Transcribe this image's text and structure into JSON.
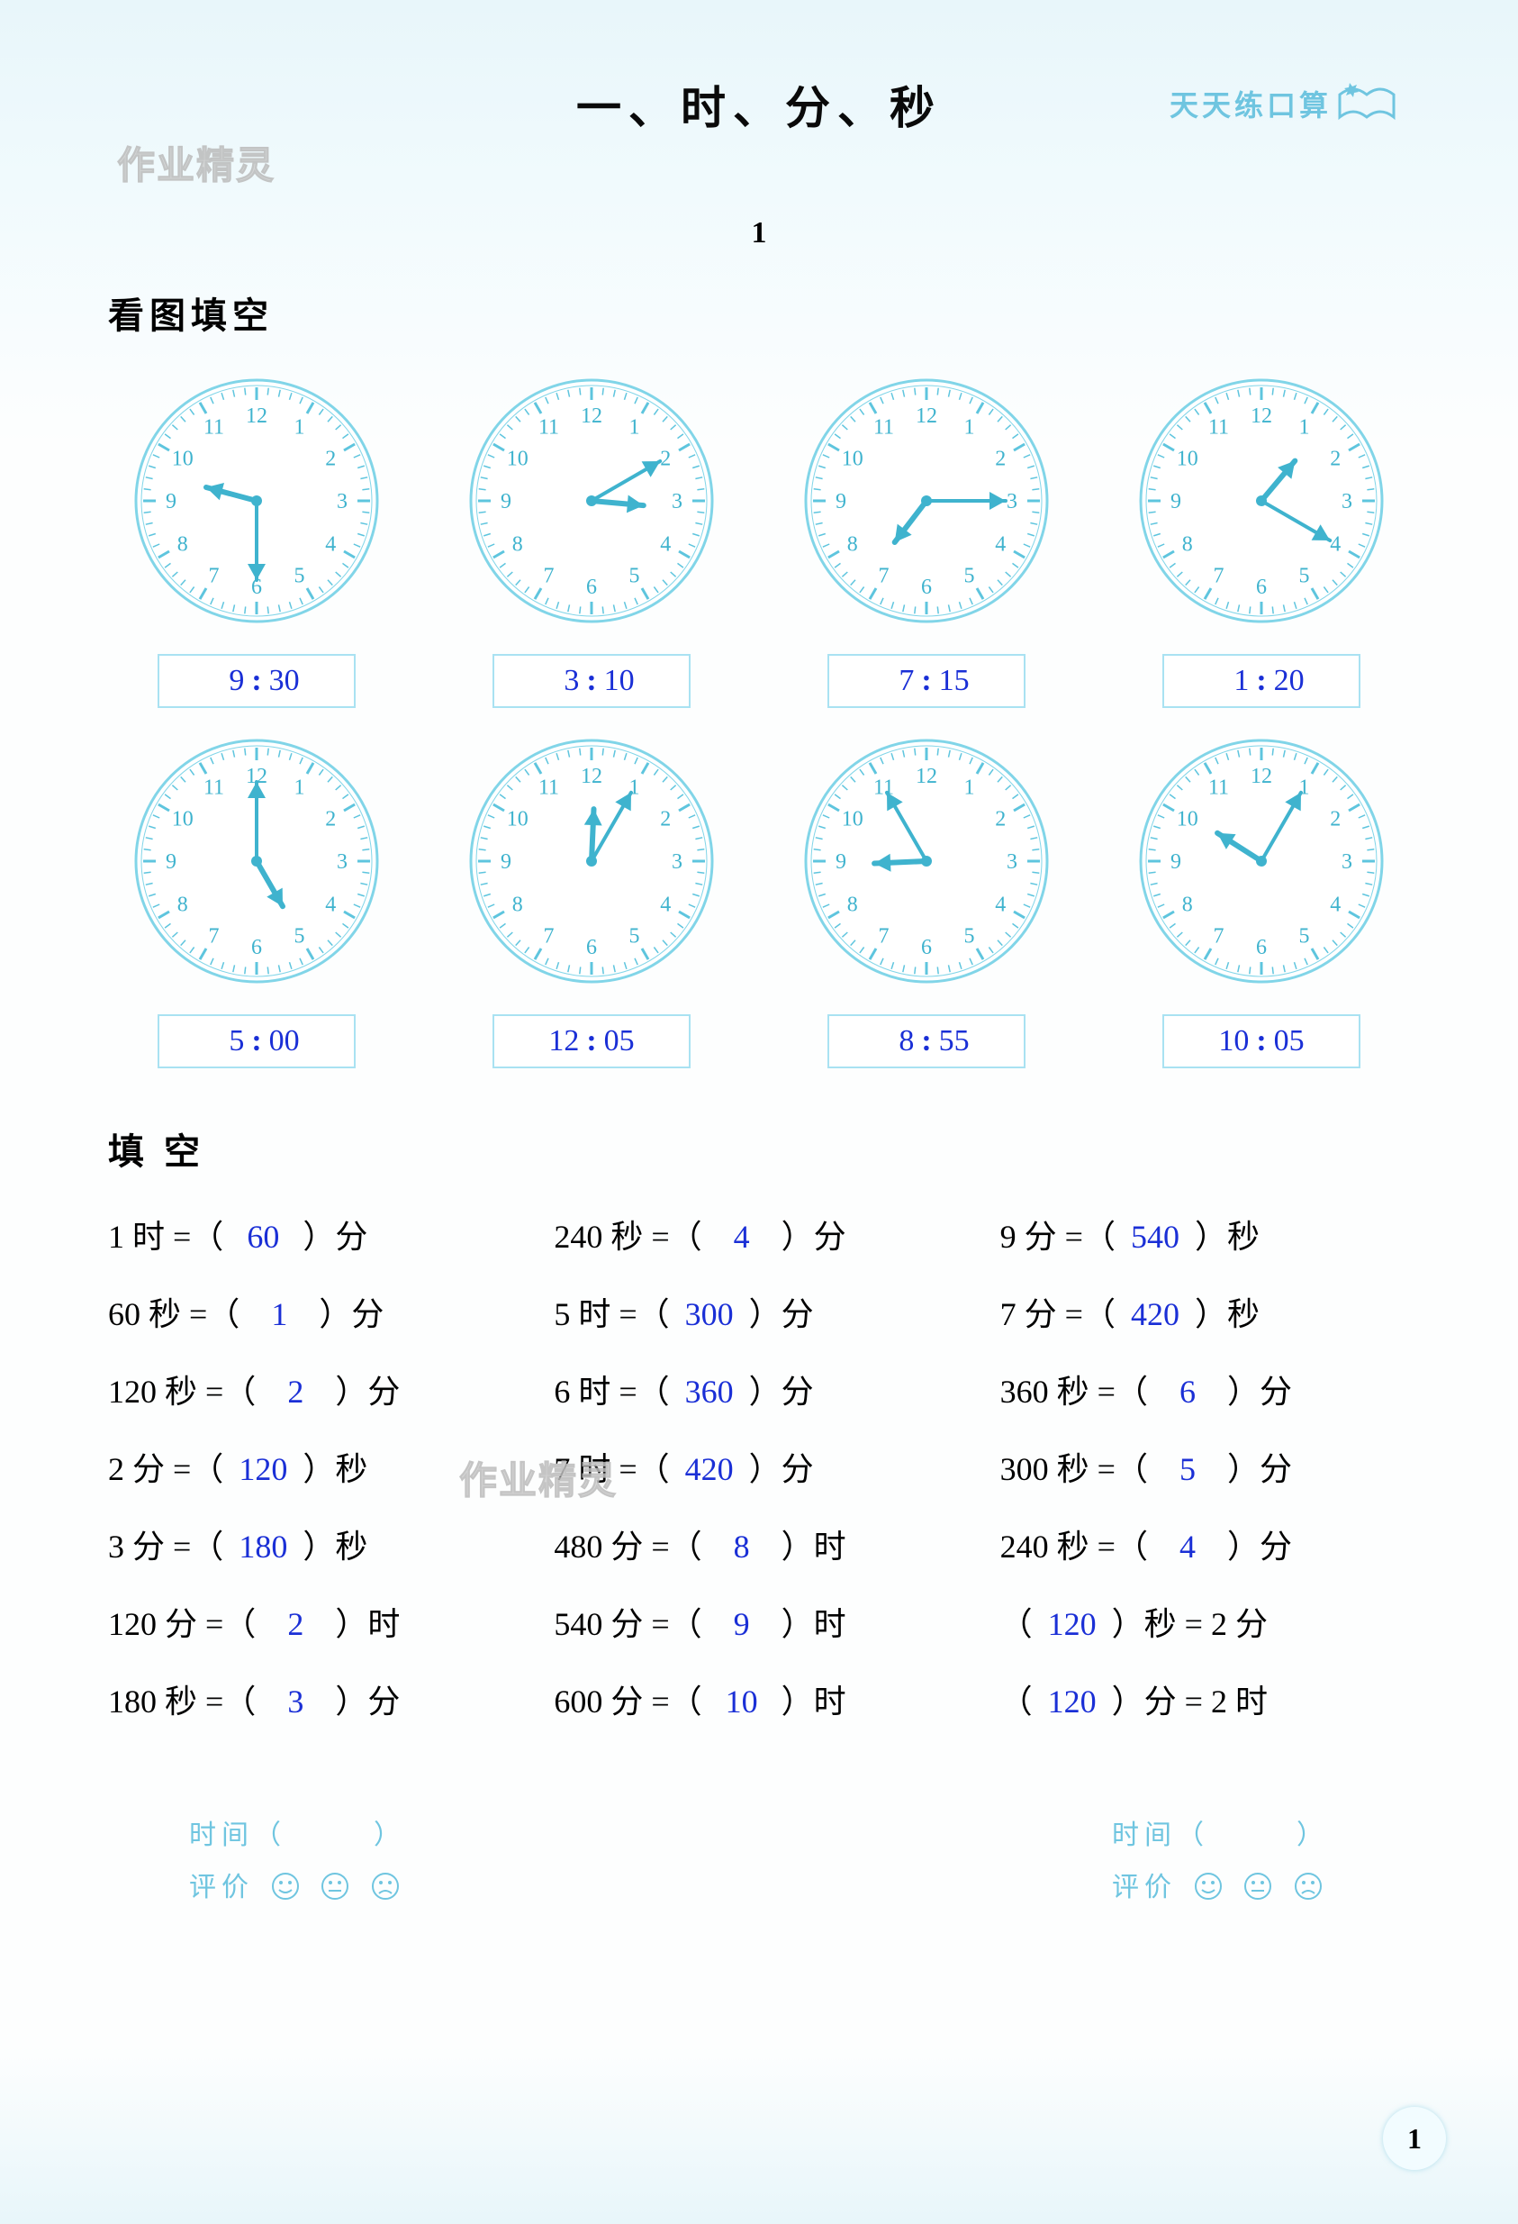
{
  "colors": {
    "clock_stroke": "#81d5e8",
    "clock_hand": "#3fb3ce",
    "clock_tick": "#5ec5de",
    "answer": "#1a2fd6",
    "brand": "#6fc5e0",
    "box_border": "#a9e2f2"
  },
  "header": {
    "chapter_title": "一、时、分、秒",
    "brand": "天天练口算"
  },
  "watermarks": {
    "top": "作业精灵",
    "mid": "作业精灵"
  },
  "section_number": "1",
  "section1_title": "看图填空",
  "section2_title": "填 空",
  "clocks": [
    {
      "hour": 9,
      "minute": 30,
      "display_h": "9",
      "display_m": "30"
    },
    {
      "hour": 3,
      "minute": 10,
      "display_h": "3",
      "display_m": "10"
    },
    {
      "hour": 7,
      "minute": 15,
      "display_h": "7",
      "display_m": "15"
    },
    {
      "hour": 1,
      "minute": 20,
      "display_h": "1",
      "display_m": "20"
    },
    {
      "hour": 5,
      "minute": 0,
      "display_h": "5",
      "display_m": "00"
    },
    {
      "hour": 12,
      "minute": 5,
      "display_h": "12",
      "display_m": "05"
    },
    {
      "hour": 8,
      "minute": 55,
      "display_h": "8",
      "display_m": "55"
    },
    {
      "hour": 10,
      "minute": 5,
      "display_h": "10",
      "display_m": "05"
    }
  ],
  "fill_items": [
    {
      "lhs_val": "1",
      "lhs_unit": "时 =",
      "answer": "60",
      "rhs_unit": "分"
    },
    {
      "lhs_val": "240",
      "lhs_unit": "秒 =",
      "answer": "4",
      "rhs_unit": "分"
    },
    {
      "lhs_val": "9",
      "lhs_unit": "分 =",
      "answer": "540",
      "rhs_unit": "秒"
    },
    {
      "lhs_val": "60",
      "lhs_unit": "秒 =",
      "answer": "1",
      "rhs_unit": "分"
    },
    {
      "lhs_val": "5",
      "lhs_unit": "时 =",
      "answer": "300",
      "rhs_unit": "分"
    },
    {
      "lhs_val": "7",
      "lhs_unit": "分 =",
      "answer": "420",
      "rhs_unit": "秒"
    },
    {
      "lhs_val": "120",
      "lhs_unit": "秒 =",
      "answer": "2",
      "rhs_unit": "分"
    },
    {
      "lhs_val": "6",
      "lhs_unit": "时 =",
      "answer": "360",
      "rhs_unit": "分"
    },
    {
      "lhs_val": "360",
      "lhs_unit": "秒 =",
      "answer": "6",
      "rhs_unit": "分"
    },
    {
      "lhs_val": "2",
      "lhs_unit": "分 =",
      "answer": "120",
      "rhs_unit": "秒"
    },
    {
      "lhs_val": "7",
      "lhs_unit": "时 =",
      "answer": "420",
      "rhs_unit": "分"
    },
    {
      "lhs_val": "300",
      "lhs_unit": "秒 =",
      "answer": "5",
      "rhs_unit": "分"
    },
    {
      "lhs_val": "3",
      "lhs_unit": "分 =",
      "answer": "180",
      "rhs_unit": "秒"
    },
    {
      "lhs_val": "480",
      "lhs_unit": "分 =",
      "answer": "8",
      "rhs_unit": "时"
    },
    {
      "lhs_val": "240",
      "lhs_unit": "秒 =",
      "answer": "4",
      "rhs_unit": "分"
    },
    {
      "lhs_val": "120",
      "lhs_unit": "分 =",
      "answer": "2",
      "rhs_unit": "时"
    },
    {
      "lhs_val": "540",
      "lhs_unit": "分 =",
      "answer": "9",
      "rhs_unit": "时"
    },
    {
      "reversed": true,
      "answer": "120",
      "rhs_unit": "秒 = 2 分"
    },
    {
      "lhs_val": "180",
      "lhs_unit": "秒 =",
      "answer": "3",
      "rhs_unit": "分"
    },
    {
      "lhs_val": "600",
      "lhs_unit": "分 =",
      "answer": "10",
      "rhs_unit": "时"
    },
    {
      "reversed": true,
      "answer": "120",
      "rhs_unit": "分 = 2 时"
    }
  ],
  "footer": {
    "time_label": "时间（",
    "time_close": "）",
    "rating_label": "评价"
  },
  "page_number": "1"
}
